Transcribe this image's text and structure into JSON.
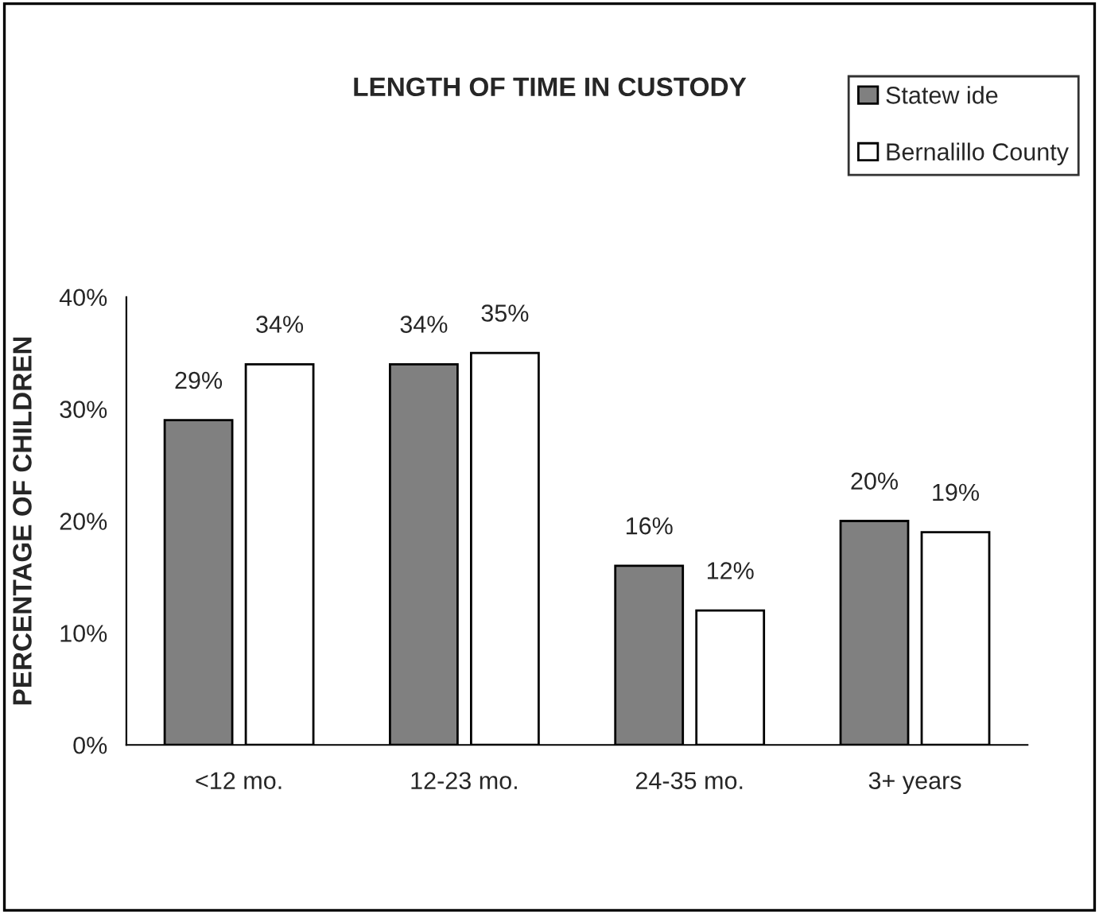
{
  "chart_data": {
    "type": "bar",
    "title": "LENGTH OF TIME IN CUSTODY",
    "ylabel": "PERCENTAGE OF CHILDREN",
    "categories": [
      "<12 mo.",
      "12-23 mo.",
      "24-35 mo.",
      "3+ years"
    ],
    "series": [
      {
        "name": "Statew ide",
        "color": "#808080",
        "values": [
          29,
          34,
          16,
          20
        ],
        "value_labels": [
          "29%",
          "34%",
          "16%",
          "20%"
        ]
      },
      {
        "name": "Bernalillo County",
        "color": "#ffffff",
        "values": [
          34,
          35,
          12,
          19
        ],
        "value_labels": [
          "34%",
          "35%",
          "12%",
          "19%"
        ]
      }
    ],
    "ylim": [
      0,
      40
    ],
    "yticks": [
      {
        "value": 0,
        "label": "0%"
      },
      {
        "value": 10,
        "label": "10%"
      },
      {
        "value": 20,
        "label": "20%"
      },
      {
        "value": 30,
        "label": "30%"
      },
      {
        "value": 40,
        "label": "40%"
      }
    ],
    "grid": false,
    "legend": "top right"
  }
}
